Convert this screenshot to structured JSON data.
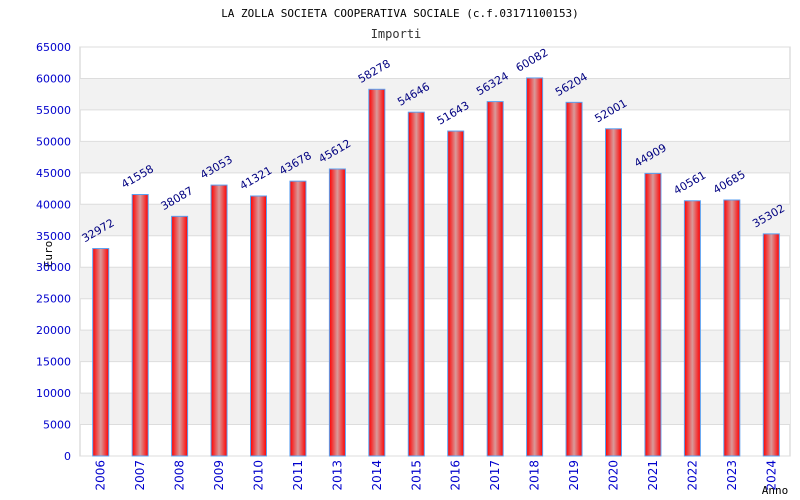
{
  "chart_data": {
    "type": "bar",
    "title": "LA ZOLLA SOCIETA COOPERATIVA SOCIALE (c.f.03171100153)",
    "subtitle": "Importi",
    "xlabel": "Anno",
    "ylabel": "Euro",
    "ylim": [
      0,
      65000
    ],
    "ytick_step": 5000,
    "grid": true,
    "categories": [
      "2006",
      "2007",
      "2008",
      "2009",
      "2010",
      "2011",
      "2013",
      "2014",
      "2015",
      "2016",
      "2017",
      "2018",
      "2019",
      "2020",
      "2021",
      "2022",
      "2023",
      "2024"
    ],
    "values": [
      32972,
      41558,
      38087,
      43053,
      41321,
      43678,
      45612,
      58278,
      54646,
      51643,
      56324,
      60082,
      56204,
      52001,
      44909,
      40561,
      40685,
      35302
    ],
    "colors": {
      "bar": "#ff0000",
      "bar_highlight": "#d99a9a",
      "bar_border": "#5aa0f0",
      "label": "#000080",
      "tick": "#0000cc",
      "band": "#f2f2f2",
      "grid": "#dddddd"
    }
  }
}
